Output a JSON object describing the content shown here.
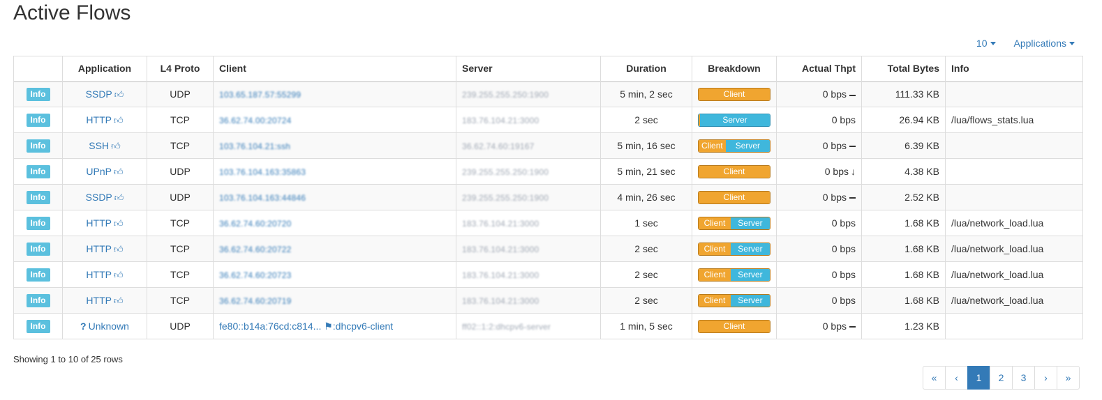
{
  "page_title": "Active Flows",
  "toolbar": {
    "per_page": "10",
    "filter": "Applications"
  },
  "table": {
    "headers": [
      "",
      "Application",
      "L4 Proto",
      "Client",
      "Server",
      "Duration",
      "Breakdown",
      "Actual Thpt",
      "Total Bytes",
      "Info"
    ],
    "rows": [
      {
        "btn": "Info",
        "app": "SSDP",
        "proto": "UDP",
        "client": "103.65.187.57:55299",
        "server": "239.255.255.250:1900",
        "duration": "5 min, 2 sec",
        "breakdown": {
          "client": 1.0
        },
        "thpt": "0 bps",
        "trend": "minus",
        "bytes": "111.33 KB",
        "info": ""
      },
      {
        "btn": "Info",
        "app": "HTTP",
        "proto": "TCP",
        "client": "36.62.74.00:20724",
        "server": "183.76.104.21:3000",
        "duration": "2 sec",
        "breakdown": {
          "client": 0.02
        },
        "thpt": "0 bps",
        "trend": "",
        "bytes": "26.94 KB",
        "info": "/lua/flows_stats.lua"
      },
      {
        "btn": "Info",
        "app": "SSH",
        "proto": "TCP",
        "client": "103.76.104.21:ssh",
        "server": "36.62.74.60:19167",
        "duration": "5 min, 16 sec",
        "breakdown": {
          "client": 0.38
        },
        "thpt": "0 bps",
        "trend": "minus",
        "bytes": "6.39 KB",
        "info": ""
      },
      {
        "btn": "Info",
        "app": "UPnP",
        "proto": "UDP",
        "client": "103.76.104.163:35863",
        "server": "239.255.255.250:1900",
        "duration": "5 min, 21 sec",
        "breakdown": {
          "client": 1.0
        },
        "thpt": "0 bps",
        "trend": "down",
        "bytes": "4.38 KB",
        "info": ""
      },
      {
        "btn": "Info",
        "app": "SSDP",
        "proto": "UDP",
        "client": "103.76.104.163:44846",
        "server": "239.255.255.250:1900",
        "duration": "4 min, 26 sec",
        "breakdown": {
          "client": 1.0
        },
        "thpt": "0 bps",
        "trend": "minus",
        "bytes": "2.52 KB",
        "info": ""
      },
      {
        "btn": "Info",
        "app": "HTTP",
        "proto": "TCP",
        "client": "36.62.74.60:20720",
        "server": "183.76.104.21:3000",
        "duration": "1 sec",
        "breakdown": {
          "client": 0.45
        },
        "thpt": "0 bps",
        "trend": "",
        "bytes": "1.68 KB",
        "info": "/lua/network_load.lua"
      },
      {
        "btn": "Info",
        "app": "HTTP",
        "proto": "TCP",
        "client": "36.62.74.60:20722",
        "server": "183.76.104.21:3000",
        "duration": "2 sec",
        "breakdown": {
          "client": 0.45
        },
        "thpt": "0 bps",
        "trend": "",
        "bytes": "1.68 KB",
        "info": "/lua/network_load.lua"
      },
      {
        "btn": "Info",
        "app": "HTTP",
        "proto": "TCP",
        "client": "36.62.74.60:20723",
        "server": "183.76.104.21:3000",
        "duration": "2 sec",
        "breakdown": {
          "client": 0.45
        },
        "thpt": "0 bps",
        "trend": "",
        "bytes": "1.68 KB",
        "info": "/lua/network_load.lua"
      },
      {
        "btn": "Info",
        "app": "HTTP",
        "proto": "TCP",
        "client": "36.62.74.60:20719",
        "server": "183.76.104.21:3000",
        "duration": "2 sec",
        "breakdown": {
          "client": 0.45
        },
        "thpt": "0 bps",
        "trend": "",
        "bytes": "1.68 KB",
        "info": "/lua/network_load.lua"
      },
      {
        "btn": "Info",
        "app": "Unknown",
        "proto": "UDP",
        "client": "fe80::b14a:76cd:c814...",
        "client_tag": ":dhcpv6-client",
        "server": "ff02::1:2:dhcpv6-server",
        "duration": "1 min, 5 sec",
        "breakdown": {
          "client": 1.0
        },
        "thpt": "0 bps",
        "trend": "minus",
        "bytes": "1.23 KB",
        "info": ""
      }
    ]
  },
  "breakdown_labels": {
    "client": "Client",
    "server": "Server"
  },
  "status_text": "Showing 1 to 10 of 25 rows",
  "pagination": [
    "«",
    "‹",
    "1",
    "2",
    "3",
    "›",
    "»"
  ],
  "pagination_active": "1",
  "colors": {
    "client": "#f0a530",
    "server": "#3fb7dc",
    "info_button": "#5bc0de",
    "link": "#337ab7"
  }
}
